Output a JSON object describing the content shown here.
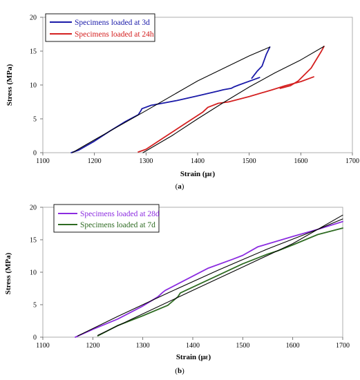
{
  "chart_data": [
    {
      "type": "line",
      "panel_label_prefix": "(",
      "panel_letter": "a",
      "panel_label_suffix": ")",
      "xlabel": "Strain (με)",
      "ylabel": "Stress (MPa)",
      "xlim": [
        1100,
        1700
      ],
      "ylim": [
        0,
        20
      ],
      "xticks": [
        1100,
        1200,
        1300,
        1400,
        1500,
        1600,
        1700
      ],
      "yticks": [
        0,
        5,
        10,
        15,
        20
      ],
      "grid": false,
      "legend_position": "top-left",
      "series": [
        {
          "name": "Specimens loaded at 3d",
          "color": "#1a1aa8",
          "in_legend": true,
          "x": [
            1155,
            1170,
            1200,
            1230,
            1260,
            1285,
            1290,
            1292,
            1310,
            1325,
            1360,
            1400,
            1440,
            1450,
            1465,
            1470,
            1480,
            1520
          ],
          "y": [
            0,
            0.4,
            1.7,
            3.2,
            4.6,
            5.6,
            6.2,
            6.5,
            7.0,
            7.2,
            7.7,
            8.4,
            9.1,
            9.3,
            9.5,
            9.7,
            10.0,
            11.1
          ]
        },
        {
          "name": "",
          "color": "#1a1aa8",
          "in_legend": false,
          "x": [
            1505,
            1515,
            1525,
            1533,
            1540
          ],
          "y": [
            11.0,
            12.0,
            12.8,
            14.5,
            15.6
          ]
        },
        {
          "name": "",
          "color": "#000000",
          "in_legend": false,
          "x": [
            1157,
            1200,
            1300,
            1400,
            1500,
            1540
          ],
          "y": [
            0,
            1.9,
            6.2,
            10.6,
            14.3,
            15.6
          ]
        },
        {
          "name": "Specimens loaded at 24h",
          "color": "#d42020",
          "in_legend": true,
          "x": [
            1285,
            1300,
            1330,
            1370,
            1410,
            1420,
            1440,
            1460,
            1500,
            1545,
            1570,
            1600,
            1625
          ],
          "y": [
            0.1,
            0.5,
            2.0,
            4.0,
            6.0,
            6.7,
            7.3,
            7.5,
            8.3,
            9.3,
            9.9,
            10.5,
            11.2
          ]
        },
        {
          "name": "",
          "color": "#d42020",
          "in_legend": false,
          "x": [
            1560,
            1580,
            1595,
            1620,
            1640,
            1645
          ],
          "y": [
            9.5,
            9.9,
            10.6,
            12.5,
            15.0,
            15.7
          ]
        },
        {
          "name": "",
          "color": "#000000",
          "in_legend": false,
          "x": [
            1294,
            1350,
            1400,
            1450,
            1500,
            1550,
            1600,
            1645
          ],
          "y": [
            0,
            2.5,
            5.0,
            7.4,
            9.7,
            11.8,
            13.7,
            15.7
          ]
        }
      ]
    },
    {
      "type": "line",
      "panel_label_prefix": "(",
      "panel_letter": "b",
      "panel_label_suffix": ")",
      "xlabel": "Strain (με)",
      "ylabel": "Stress (MPa)",
      "xlim": [
        1100,
        1700
      ],
      "ylim": [
        0,
        20
      ],
      "xticks": [
        1100,
        1200,
        1300,
        1400,
        1500,
        1600,
        1700
      ],
      "yticks": [
        0,
        5,
        10,
        15,
        20
      ],
      "grid": false,
      "legend_position": "top-left",
      "series": [
        {
          "name": "Specimens loaded at 28d",
          "color": "#8b2be0",
          "in_legend": true,
          "x": [
            1165,
            1200,
            1250,
            1300,
            1330,
            1340,
            1345,
            1380,
            1430,
            1480,
            1500,
            1530,
            1600,
            1650,
            1700
          ],
          "y": [
            0,
            1.2,
            2.8,
            4.8,
            6.2,
            6.9,
            7.2,
            8.6,
            10.6,
            12.0,
            12.6,
            13.9,
            15.5,
            16.6,
            17.8
          ]
        },
        {
          "name": "",
          "color": "#000000",
          "in_legend": false,
          "x": [
            1170,
            1250,
            1350,
            1450,
            1550,
            1650,
            1700
          ],
          "y": [
            0.2,
            3.2,
            6.8,
            10.3,
            13.6,
            16.6,
            18.2
          ]
        },
        {
          "name": "Specimens loaded at 7d",
          "color": "#2e6b22",
          "in_legend": true,
          "x": [
            1210,
            1250,
            1300,
            1350,
            1370,
            1375,
            1400,
            1450,
            1500,
            1550,
            1570,
            1600,
            1650,
            1700
          ],
          "y": [
            0.2,
            1.8,
            3.3,
            4.9,
            6.2,
            6.8,
            7.7,
            9.5,
            11.3,
            12.8,
            13.3,
            14.2,
            15.8,
            16.8
          ]
        },
        {
          "name": "",
          "color": "#000000",
          "in_legend": false,
          "x": [
            1210,
            1300,
            1400,
            1500,
            1600,
            1700
          ],
          "y": [
            0.3,
            3.6,
            7.2,
            10.8,
            14.4,
            18.8
          ]
        }
      ]
    }
  ]
}
